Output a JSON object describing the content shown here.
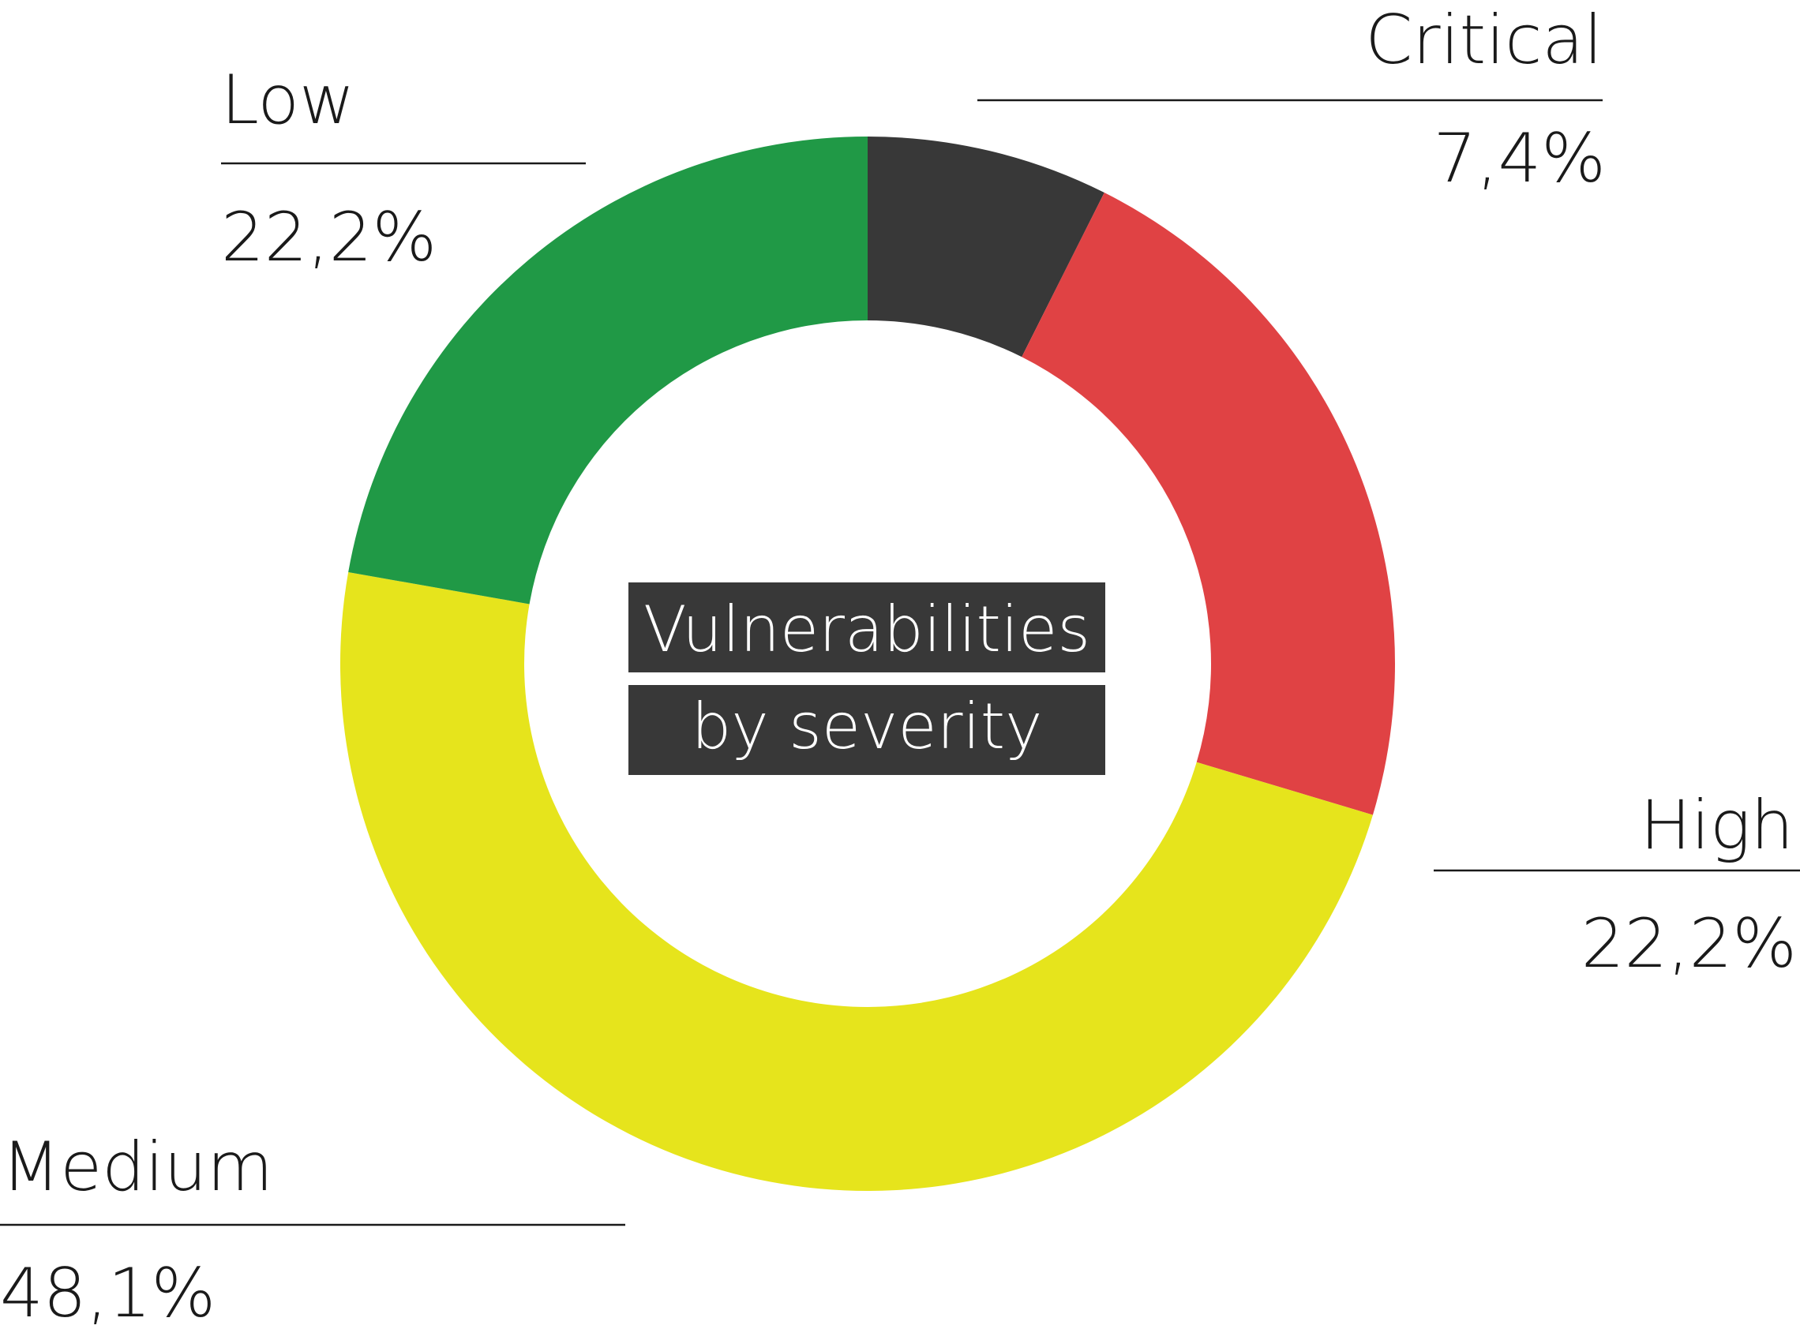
{
  "chart_data": {
    "type": "pie",
    "variant": "donut",
    "title_lines": [
      "Vulnerabilities",
      "by severity"
    ],
    "categories": [
      "Critical",
      "High",
      "Medium",
      "Low"
    ],
    "values": [
      7.4,
      22.2,
      48.1,
      22.2
    ],
    "value_labels": [
      "7,4%",
      "22,2%",
      "48,1%",
      "22,2%"
    ],
    "colors": [
      "#383838",
      "#e04244",
      "#e6e41c",
      "#209946"
    ],
    "start_angle": "12 o'clock",
    "direction": "clockwise",
    "legend": "none"
  }
}
